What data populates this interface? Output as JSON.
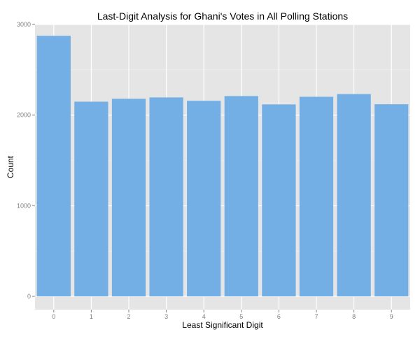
{
  "chart_data": {
    "type": "bar",
    "title": "Last-Digit Analysis for Ghani's Votes in All Polling Stations",
    "xlabel": "Least Significant Digit",
    "ylabel": "Count",
    "categories": [
      "0",
      "1",
      "2",
      "3",
      "4",
      "5",
      "6",
      "7",
      "8",
      "9"
    ],
    "values": [
      2875,
      2148,
      2180,
      2195,
      2158,
      2210,
      2118,
      2202,
      2232,
      2120
    ],
    "y_ticks": [
      "0",
      "1000",
      "2000",
      "3000"
    ],
    "ylim": [
      0,
      3000
    ],
    "bar_color": "#73aee5",
    "panel_color": "#e5e5e5",
    "grid": true,
    "legend": "none"
  }
}
